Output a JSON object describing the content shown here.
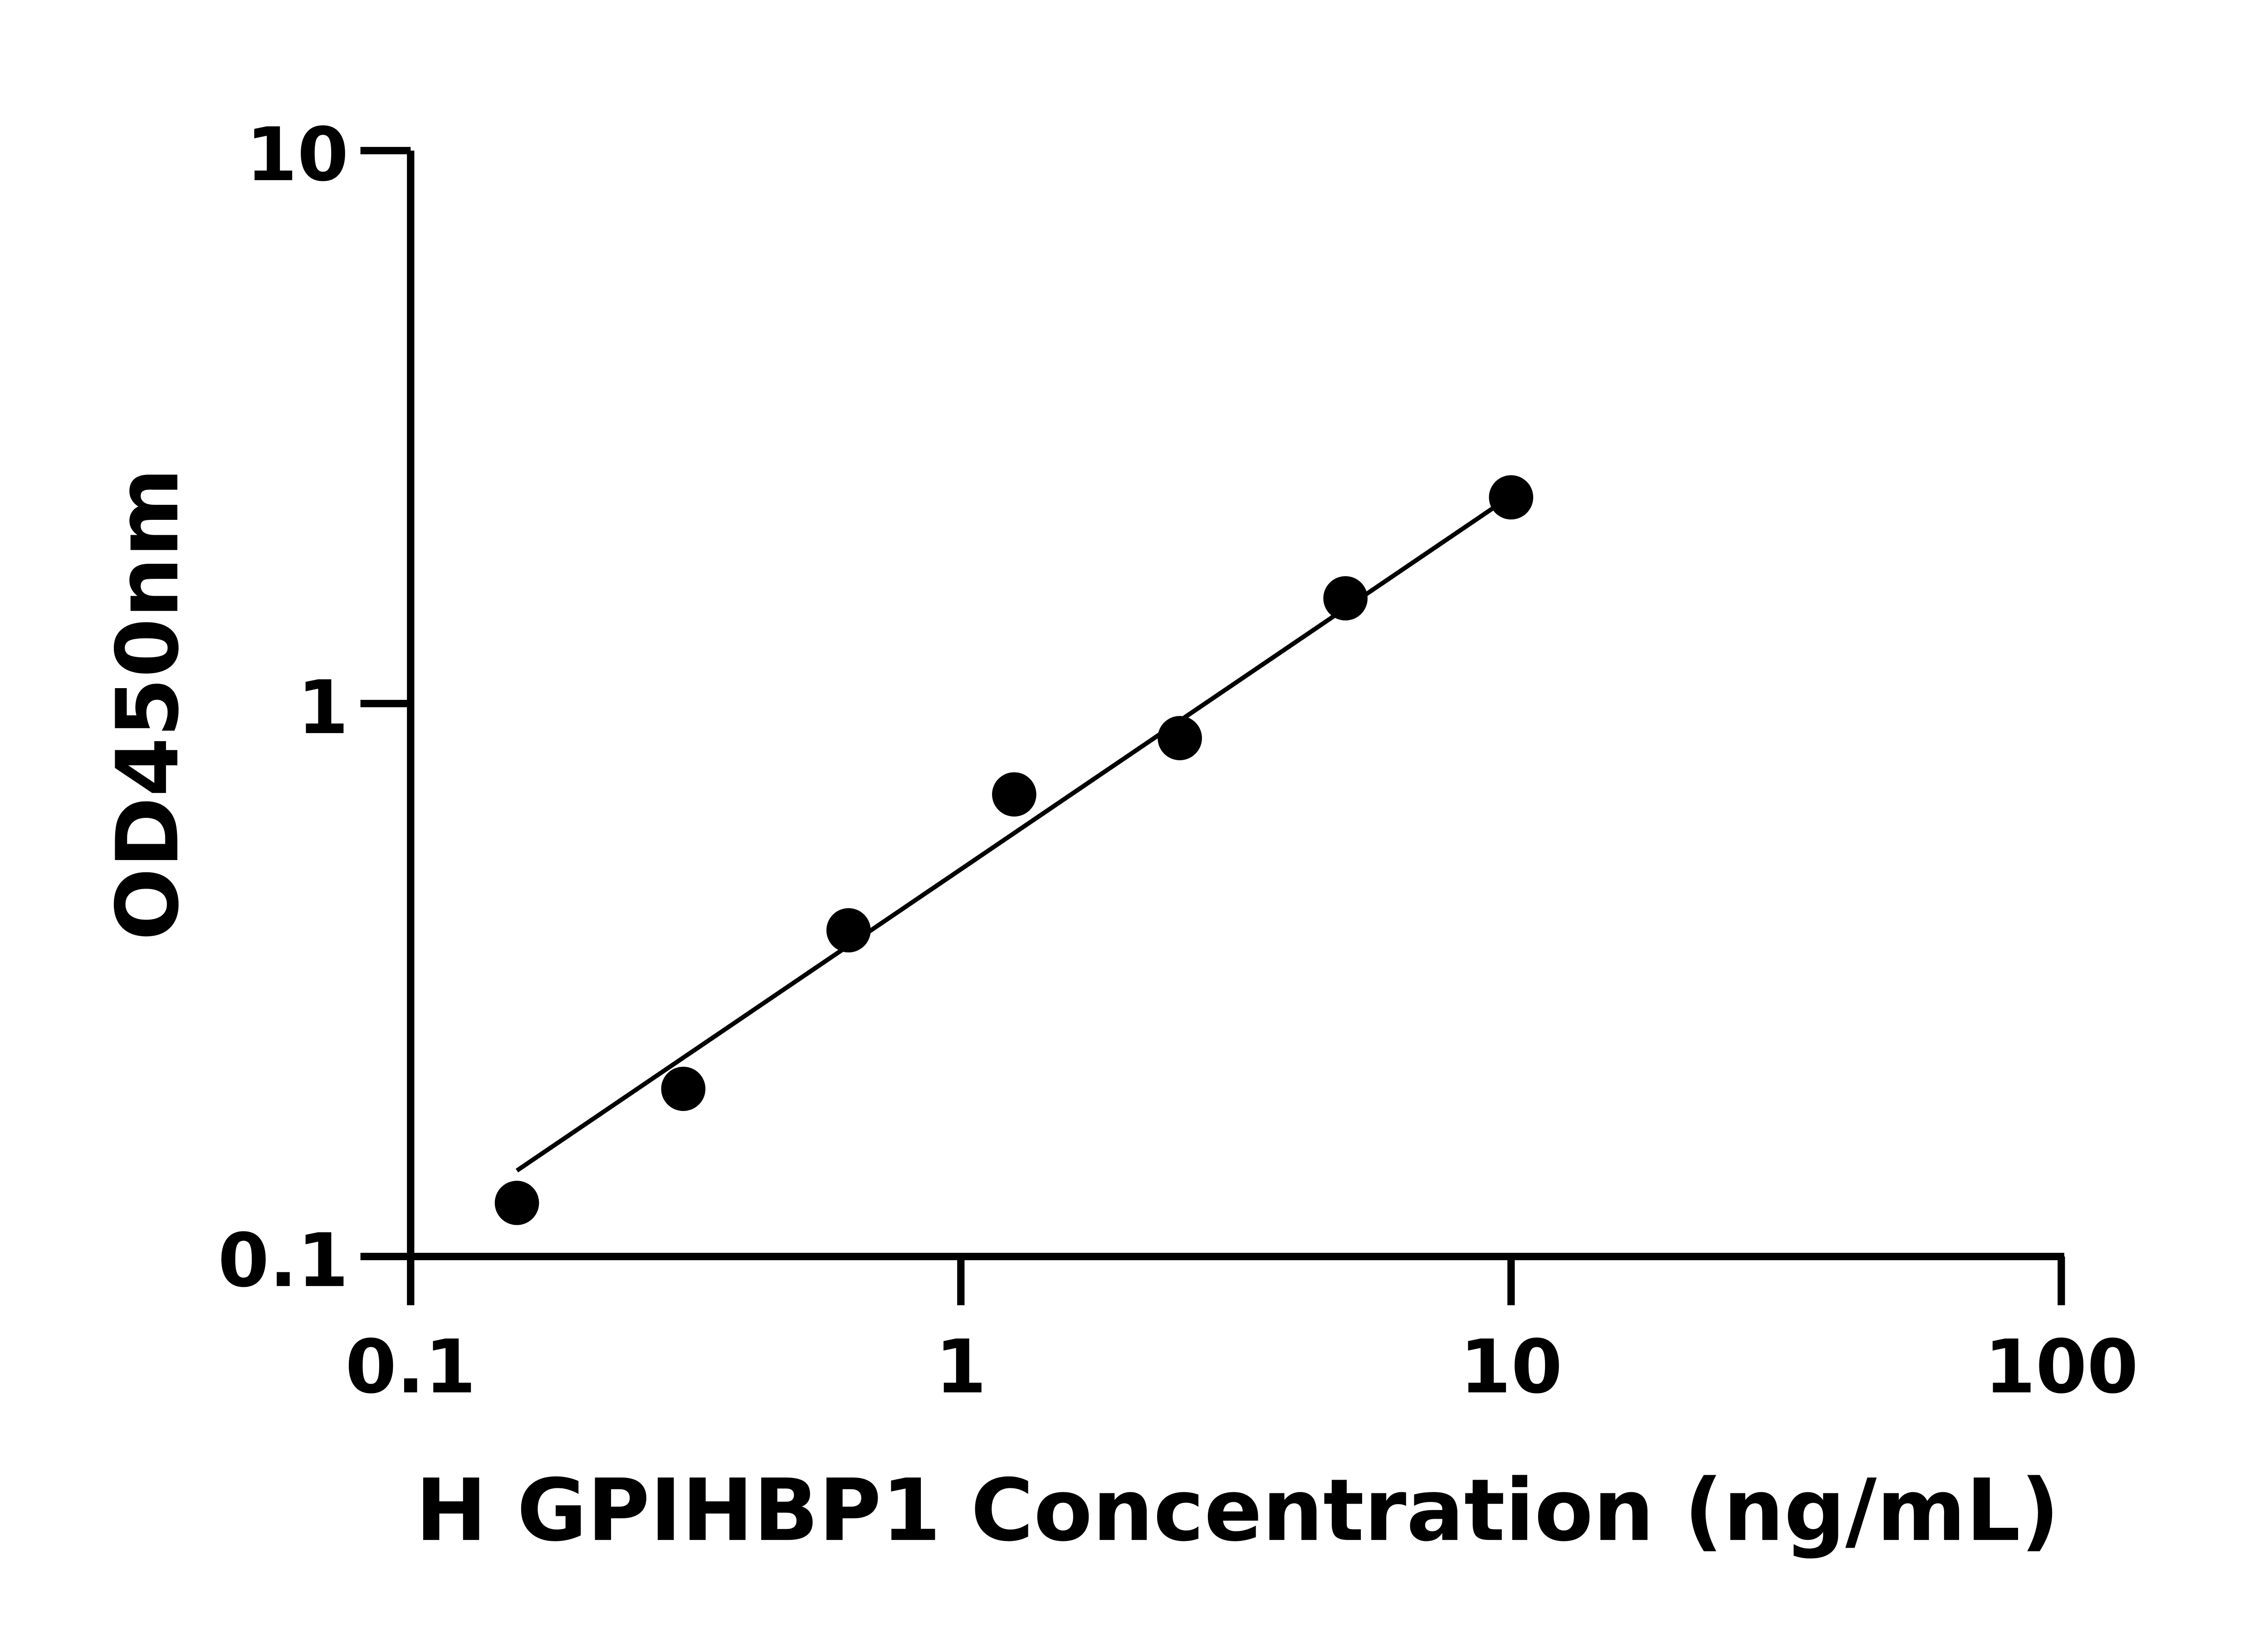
{
  "chart_data": {
    "type": "scatter",
    "title": "",
    "xlabel": "H GPIHBP1 Concentration (ng/mL)",
    "ylabel": "OD450nm",
    "xscale": "log",
    "yscale": "log",
    "xlim": [
      0.1,
      100
    ],
    "ylim": [
      0.1,
      10
    ],
    "xticks": [
      "0.1",
      "1",
      "10",
      "100"
    ],
    "yticks": [
      "0.1",
      "1",
      "10"
    ],
    "grid": false,
    "legend": "none",
    "marker_color": "#000000",
    "series": [
      {
        "x": [
          0.156,
          0.313,
          0.625,
          1.25,
          2.5,
          5,
          10
        ],
        "y": [
          0.125,
          0.201,
          0.389,
          0.685,
          0.866,
          1.55,
          2.36
        ]
      }
    ],
    "fit_line": {
      "x": [
        0.156,
        9.6
      ],
      "y": [
        0.143,
        2.31
      ]
    }
  }
}
